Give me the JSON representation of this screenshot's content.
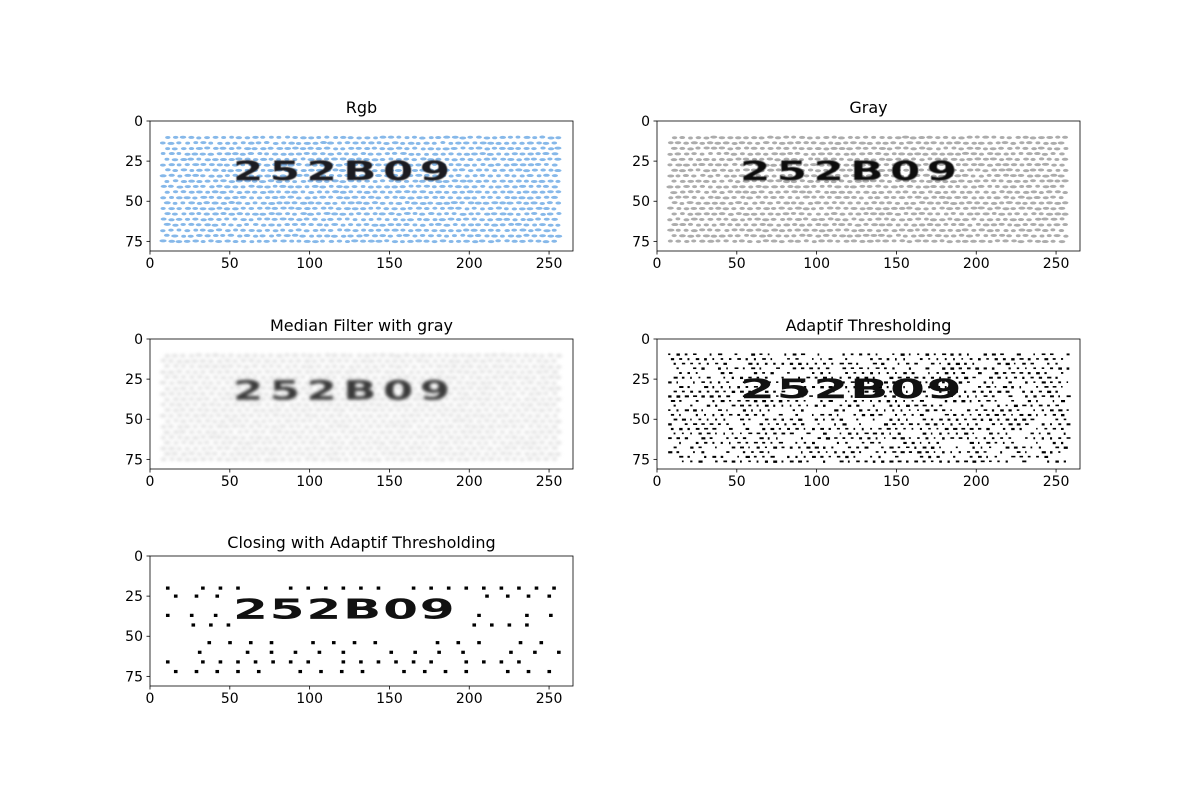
{
  "chart_data": [
    {
      "type": "image",
      "title": "Rgb",
      "text": "252B09",
      "style": "rgb",
      "xlim": [
        0,
        265
      ],
      "ylim": [
        81,
        0
      ],
      "xticks": [
        0,
        50,
        100,
        150,
        200,
        250
      ],
      "yticks": [
        0,
        25,
        50,
        75
      ],
      "grid": false
    },
    {
      "type": "image",
      "title": "Gray",
      "text": "252B09",
      "style": "gray",
      "xlim": [
        0,
        265
      ],
      "ylim": [
        81,
        0
      ],
      "xticks": [
        0,
        50,
        100,
        150,
        200,
        250
      ],
      "yticks": [
        0,
        25,
        50,
        75
      ],
      "grid": false
    },
    {
      "type": "image",
      "title": "Median Filter with gray",
      "text": "252B09",
      "style": "median",
      "xlim": [
        0,
        265
      ],
      "ylim": [
        81,
        0
      ],
      "xticks": [
        0,
        50,
        100,
        150,
        200,
        250
      ],
      "yticks": [
        0,
        25,
        50,
        75
      ],
      "grid": false
    },
    {
      "type": "image",
      "title": "Adaptif Thresholding",
      "text": "252B09",
      "style": "threshold",
      "xlim": [
        0,
        265
      ],
      "ylim": [
        81,
        0
      ],
      "xticks": [
        0,
        50,
        100,
        150,
        200,
        250
      ],
      "yticks": [
        0,
        25,
        50,
        75
      ],
      "grid": false
    },
    {
      "type": "image",
      "title": "Closing with Adaptif Thresholding",
      "text": "252B09",
      "style": "closing",
      "xlim": [
        0,
        265
      ],
      "ylim": [
        81,
        0
      ],
      "xticks": [
        0,
        50,
        100,
        150,
        200,
        250
      ],
      "yticks": [
        0,
        25,
        50,
        75
      ],
      "grid": false
    }
  ]
}
